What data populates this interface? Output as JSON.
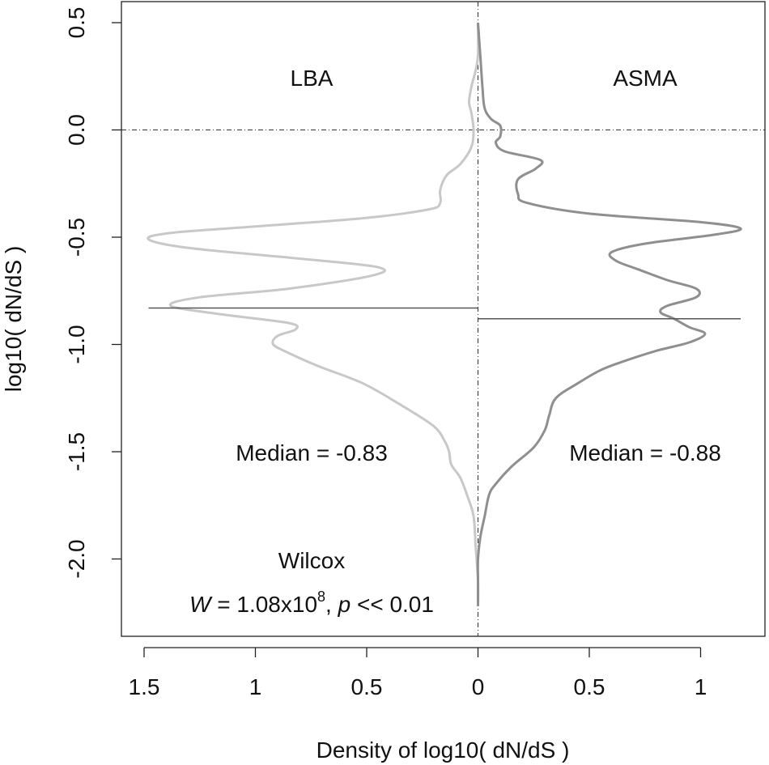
{
  "colors": {
    "lba_curve": "#c8c8c8",
    "asma_curve": "#8f8f8f",
    "axis": "#222222",
    "median_line": "#555555"
  },
  "chart_data": {
    "type": "violin",
    "xlabel": "Density of log10( dN/dS )",
    "ylabel": "log10( dN/dS )",
    "ylim": [
      -2.25,
      0.55
    ],
    "xlim": [
      -1.55,
      1.3
    ],
    "y_ticks": [
      0.5,
      0.0,
      -0.5,
      -1.0,
      -1.5,
      -2.0
    ],
    "y_tick_labels": [
      "0.5",
      "0.0",
      "-0.5",
      "-1.0",
      "-1.5",
      "-2.0"
    ],
    "x_ticks": [
      -1.5,
      -1.0,
      -0.5,
      0.0,
      0.5,
      1.0
    ],
    "x_tick_labels": [
      "1.5",
      "1",
      "0.5",
      "0",
      "0.5",
      "1"
    ],
    "annotations": {
      "lba_label": "LBA",
      "asma_label": "ASMA",
      "lba_median": "Median = -0.83",
      "asma_median": "Median = -0.88",
      "test_name": "Wilcox",
      "w_symbol": "W",
      "w_value": " = 1.08x10",
      "w_exponent": "8",
      "p_sep": ", ",
      "p_symbol": "p",
      "p_value": " << 0.01"
    },
    "series": [
      {
        "name": "LBA",
        "side": "left",
        "median": -0.83,
        "points": [
          [
            0.0,
            0.5
          ],
          [
            0.0,
            0.35
          ],
          [
            0.01,
            0.28
          ],
          [
            0.03,
            0.2
          ],
          [
            0.04,
            0.13
          ],
          [
            0.03,
            0.08
          ],
          [
            0.02,
            0.0
          ],
          [
            0.03,
            -0.08
          ],
          [
            0.08,
            -0.16
          ],
          [
            0.14,
            -0.21
          ],
          [
            0.17,
            -0.28
          ],
          [
            0.17,
            -0.34
          ],
          [
            0.22,
            -0.37
          ],
          [
            0.5,
            -0.41
          ],
          [
            1.0,
            -0.45
          ],
          [
            1.38,
            -0.48
          ],
          [
            1.48,
            -0.51
          ],
          [
            1.3,
            -0.55
          ],
          [
            0.8,
            -0.6
          ],
          [
            0.45,
            -0.64
          ],
          [
            0.48,
            -0.68
          ],
          [
            0.85,
            -0.74
          ],
          [
            1.25,
            -0.78
          ],
          [
            1.38,
            -0.82
          ],
          [
            1.15,
            -0.86
          ],
          [
            0.85,
            -0.9
          ],
          [
            0.82,
            -0.93
          ],
          [
            0.9,
            -0.96
          ],
          [
            0.92,
            -1.0
          ],
          [
            0.85,
            -1.04
          ],
          [
            0.72,
            -1.1
          ],
          [
            0.52,
            -1.18
          ],
          [
            0.35,
            -1.28
          ],
          [
            0.2,
            -1.38
          ],
          [
            0.15,
            -1.45
          ],
          [
            0.13,
            -1.5
          ],
          [
            0.12,
            -1.56
          ],
          [
            0.08,
            -1.62
          ],
          [
            0.05,
            -1.7
          ],
          [
            0.02,
            -1.8
          ],
          [
            0.01,
            -1.95
          ],
          [
            0.0,
            -2.1
          ],
          [
            0.0,
            -2.22
          ]
        ]
      },
      {
        "name": "ASMA",
        "side": "right",
        "median": -0.88,
        "points": [
          [
            0.0,
            0.5
          ],
          [
            0.01,
            0.35
          ],
          [
            0.02,
            0.2
          ],
          [
            0.03,
            0.1
          ],
          [
            0.06,
            0.05
          ],
          [
            0.1,
            0.02
          ],
          [
            0.1,
            -0.03
          ],
          [
            0.08,
            -0.06
          ],
          [
            0.12,
            -0.1
          ],
          [
            0.28,
            -0.14
          ],
          [
            0.26,
            -0.18
          ],
          [
            0.18,
            -0.23
          ],
          [
            0.18,
            -0.3
          ],
          [
            0.22,
            -0.34
          ],
          [
            0.5,
            -0.39
          ],
          [
            1.0,
            -0.43
          ],
          [
            1.18,
            -0.46
          ],
          [
            1.05,
            -0.49
          ],
          [
            0.75,
            -0.53
          ],
          [
            0.6,
            -0.57
          ],
          [
            0.62,
            -0.61
          ],
          [
            0.72,
            -0.65
          ],
          [
            0.85,
            -0.7
          ],
          [
            0.98,
            -0.74
          ],
          [
            0.98,
            -0.78
          ],
          [
            0.85,
            -0.82
          ],
          [
            0.82,
            -0.85
          ],
          [
            0.88,
            -0.88
          ],
          [
            0.95,
            -0.92
          ],
          [
            1.02,
            -0.95
          ],
          [
            0.95,
            -0.99
          ],
          [
            0.8,
            -1.03
          ],
          [
            0.65,
            -1.08
          ],
          [
            0.55,
            -1.12
          ],
          [
            0.45,
            -1.18
          ],
          [
            0.35,
            -1.25
          ],
          [
            0.32,
            -1.33
          ],
          [
            0.3,
            -1.4
          ],
          [
            0.25,
            -1.48
          ],
          [
            0.15,
            -1.57
          ],
          [
            0.08,
            -1.65
          ],
          [
            0.05,
            -1.7
          ],
          [
            0.03,
            -1.8
          ],
          [
            0.01,
            -1.9
          ],
          [
            0.0,
            -2.0
          ],
          [
            0.0,
            -2.1
          ],
          [
            0.0,
            -2.22
          ]
        ]
      }
    ]
  }
}
